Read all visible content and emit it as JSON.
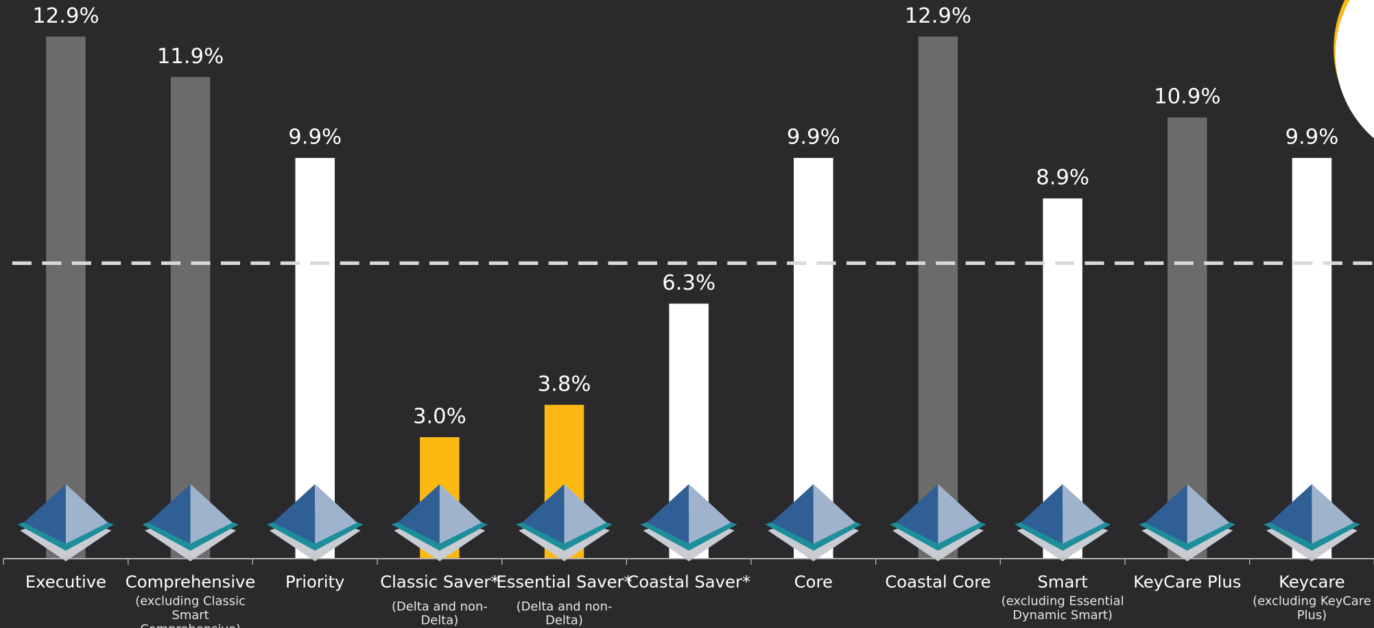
{
  "chart_data": {
    "type": "bar",
    "categories": [
      "Executive",
      "Comprehensive",
      "Priority",
      "Classic Saver*",
      "Essential Saver*",
      "Coastal Saver*",
      "Core",
      "Coastal Core",
      "Smart",
      "KeyCare Plus",
      "Keycare"
    ],
    "category_notes": [
      "(excluding Classic Smart Comprehensive)",
      null,
      "(Delta and non-Delta)",
      "(Delta and non-Delta)",
      null,
      null,
      null,
      "(excluding Essential Dynamic Smart)",
      null,
      "(excluding KeyCare Plus)"
    ],
    "category_note_for": [
      1,
      null,
      3,
      4,
      null,
      null,
      null,
      8,
      null,
      10
    ],
    "values": [
      12.9,
      11.9,
      9.9,
      3.0,
      3.8,
      6.3,
      9.9,
      12.9,
      8.9,
      10.9,
      9.9
    ],
    "value_labels": [
      "12.9%",
      "11.9%",
      "9.9%",
      "3.0%",
      "3.8%",
      "6.3%",
      "9.9%",
      "12.9%",
      "8.9%",
      "10.9%",
      "9.9%"
    ],
    "colors": [
      "#6b6b6b",
      "#6b6b6b",
      "#ffffff",
      "#fdb913",
      "#fdb913",
      "#ffffff",
      "#ffffff",
      "#6b6b6b",
      "#ffffff",
      "#6b6b6b",
      "#ffffff"
    ],
    "ylim": [
      0,
      13.8
    ],
    "reference_line": 7.3
  }
}
